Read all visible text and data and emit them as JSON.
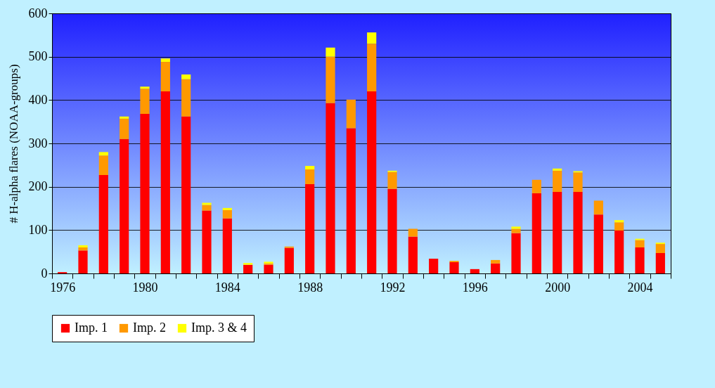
{
  "chart_data": {
    "type": "bar",
    "stacked": true,
    "ylabel": "# H-alpha flares (NOAA-groups)",
    "categories": [
      "1976",
      null,
      null,
      null,
      "1980",
      null,
      null,
      null,
      "1984",
      null,
      null,
      null,
      "1988",
      null,
      null,
      null,
      "1992",
      null,
      null,
      null,
      "1996",
      null,
      null,
      null,
      "2000",
      null,
      null,
      null,
      "2004",
      null
    ],
    "series": [
      {
        "name": "Imp. 1",
        "color": "#ff0000",
        "values": [
          3,
          53,
          227,
          310,
          368,
          420,
          362,
          145,
          127,
          20,
          20,
          59,
          206,
          393,
          335,
          420,
          195,
          85,
          34,
          26,
          10,
          23,
          93,
          185,
          188,
          188,
          136,
          99,
          60,
          47
        ]
      },
      {
        "name": "Imp. 2",
        "color": "#ff9900",
        "values": [
          0,
          7,
          45,
          47,
          58,
          68,
          86,
          13,
          19,
          0,
          3,
          3,
          34,
          107,
          66,
          110,
          39,
          18,
          0,
          3,
          0,
          8,
          10,
          31,
          49,
          45,
          32,
          19,
          17,
          21
        ]
      },
      {
        "name": "Imp. 3 & 4",
        "color": "#ffff00",
        "values": [
          0,
          5,
          8,
          5,
          5,
          8,
          11,
          5,
          5,
          4,
          4,
          0,
          8,
          21,
          0,
          26,
          3,
          0,
          0,
          0,
          0,
          0,
          5,
          0,
          5,
          3,
          0,
          5,
          3,
          3
        ]
      }
    ],
    "ylim": [
      0,
      600
    ],
    "yticks": [
      0,
      100,
      200,
      300,
      400,
      500,
      600
    ],
    "grid": "y",
    "legend": "bottom"
  }
}
